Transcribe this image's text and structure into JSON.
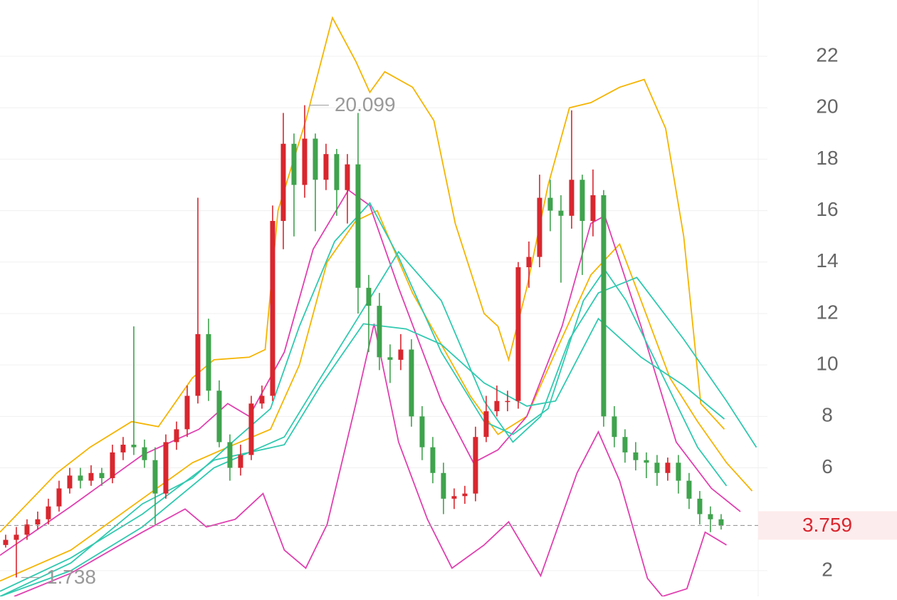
{
  "chart_data": {
    "type": "candlestick",
    "ylim": [
      1,
      24.19
    ],
    "yticks": [
      2,
      6,
      8,
      10,
      12,
      14,
      16,
      18,
      20,
      22
    ],
    "xlim": [
      -0.53,
      70.47
    ],
    "grid": true,
    "color_up": "#d9262e",
    "color_down": "#3fa34d",
    "open": [
      3.0,
      3.2,
      3.4,
      3.8,
      4.0,
      4.5,
      5.2,
      5.7,
      5.5,
      5.8,
      5.6,
      6.6,
      6.9,
      6.8,
      6.3,
      5.0,
      7.0,
      7.5,
      8.8,
      11.2,
      9.0,
      7.0,
      6.0,
      6.5,
      8.5,
      8.8,
      15.6,
      18.6,
      17.0,
      18.8,
      17.2,
      18.2,
      16.8,
      17.8,
      13.0,
      12.3,
      10.3,
      10.2,
      10.6,
      8.0,
      6.8,
      5.8,
      4.8,
      4.9,
      5.0,
      7.2,
      8.2,
      8.6,
      8.6,
      13.8,
      14.2,
      16.5,
      16.0,
      15.8,
      17.2,
      15.6,
      16.6,
      8.0,
      7.2,
      6.6,
      6.3,
      6.2,
      5.8,
      6.2,
      5.5,
      4.8,
      4.2,
      4.0
    ],
    "high": [
      3.4,
      3.7,
      4.0,
      4.3,
      4.8,
      5.5,
      6.0,
      6.0,
      6.1,
      6.0,
      6.9,
      7.2,
      11.5,
      7.1,
      6.8,
      7.3,
      7.8,
      9.2,
      16.5,
      11.8,
      9.4,
      7.3,
      6.9,
      8.8,
      9.2,
      16.2,
      19.8,
      19.0,
      20.099,
      19.0,
      18.6,
      18.4,
      18.2,
      19.8,
      13.5,
      12.8,
      10.8,
      11.2,
      11.0,
      8.4,
      7.2,
      6.2,
      5.2,
      5.3,
      7.6,
      8.8,
      9.2,
      9.0,
      14.0,
      14.8,
      17.4,
      17.2,
      16.6,
      19.9,
      17.4,
      17.6,
      16.8,
      8.4,
      7.5,
      7.0,
      6.6,
      6.5,
      6.4,
      6.5,
      5.8,
      5.1,
      4.5,
      4.2
    ],
    "low": [
      2.9,
      1.738,
      3.2,
      3.6,
      3.8,
      4.3,
      5.0,
      5.2,
      5.3,
      5.3,
      5.4,
      6.3,
      6.5,
      6.0,
      3.8,
      4.8,
      6.7,
      7.2,
      8.5,
      8.6,
      6.8,
      5.5,
      5.7,
      6.3,
      8.3,
      8.6,
      14.5,
      15.0,
      16.5,
      15.2,
      16.8,
      15.8,
      15.5,
      12.0,
      10.5,
      9.8,
      9.3,
      9.8,
      7.6,
      6.3,
      5.4,
      4.2,
      4.4,
      4.6,
      4.7,
      7.0,
      8.0,
      8.2,
      8.3,
      13.0,
      13.8,
      15.2,
      13.2,
      15.3,
      13.5,
      15.0,
      7.6,
      6.8,
      6.2,
      5.9,
      5.6,
      5.3,
      5.5,
      5.0,
      4.4,
      3.8,
      3.5,
      3.6
    ],
    "close": [
      3.2,
      3.4,
      3.8,
      4.0,
      4.5,
      5.2,
      5.7,
      5.5,
      5.8,
      5.6,
      6.6,
      6.9,
      6.8,
      6.3,
      5.0,
      7.0,
      7.5,
      8.8,
      11.2,
      9.0,
      7.0,
      6.0,
      6.5,
      8.5,
      8.8,
      15.6,
      18.6,
      17.0,
      18.8,
      17.2,
      18.2,
      16.8,
      17.8,
      13.0,
      12.3,
      10.3,
      10.2,
      10.6,
      8.0,
      6.8,
      5.8,
      4.8,
      4.9,
      5.0,
      7.2,
      8.2,
      8.6,
      8.6,
      13.8,
      14.2,
      16.5,
      16.0,
      15.8,
      17.2,
      15.6,
      16.6,
      8.0,
      7.2,
      6.6,
      6.3,
      6.2,
      5.8,
      6.2,
      5.5,
      4.8,
      4.2,
      4.0,
      3.759
    ],
    "lines": [
      {
        "color": "#f5b400",
        "x": [
          -0.53,
          4.8,
          7.9,
          11.8,
          14.3,
          17.5,
          19.5,
          22.8,
          24.3,
          25.5,
          28.1,
          30.6,
          32.8,
          34.1,
          35.5,
          38.1,
          40.1,
          42.1,
          44.8,
          46.1,
          47.1,
          48.8,
          50.8,
          52.8,
          54.8,
          57.5,
          59.8,
          61.8,
          63.5,
          65.1,
          67.3
        ],
        "values": [
          3.5,
          5.8,
          6.8,
          7.8,
          7.6,
          9.5,
          10.2,
          10.3,
          10.6,
          16,
          19.5,
          23.5,
          21.8,
          20.6,
          21.4,
          20.8,
          19.5,
          15.5,
          12,
          11.5,
          10.2,
          13,
          17,
          20,
          20.2,
          20.8,
          21.1,
          19.2,
          15,
          8.5,
          7.5
        ]
      },
      {
        "color": "#f5b400",
        "x": [
          -0.53,
          6.1,
          12.8,
          17.5,
          20.8,
          24.8,
          27.5,
          30.1,
          32.8,
          34.8,
          38.1,
          40.8,
          43.5,
          46.1,
          48.8,
          51.5,
          54.8,
          57.5,
          59.5,
          62.2,
          64.8,
          67.5,
          69.9
        ],
        "values": [
          1.6,
          2.8,
          4.8,
          6.2,
          6.8,
          7.5,
          10,
          14,
          15.6,
          16,
          12.8,
          10.8,
          8.8,
          7.3,
          8,
          10.5,
          13.5,
          14.7,
          12.5,
          9.5,
          7.8,
          6.2,
          5.1
        ]
      },
      {
        "color": "#e040b0",
        "x": [
          -0.53,
          6.1,
          12.8,
          18.1,
          20.8,
          22.8,
          26.1,
          28.8,
          32.1,
          34.1,
          36.8,
          40.8,
          43.8,
          46.1,
          48.8,
          52.1,
          54.8,
          56.1,
          59.5,
          62.8,
          66.1,
          68.8
        ],
        "values": [
          2.6,
          4.5,
          6.5,
          7.5,
          8.5,
          8.0,
          10.5,
          14.5,
          16.8,
          16.2,
          13,
          8.6,
          6.2,
          6.7,
          8,
          11.5,
          15.5,
          15.8,
          11.5,
          7.0,
          5.2,
          4.3
        ]
      },
      {
        "color": "#e040b0",
        "x": [
          0.8,
          6.1,
          12.8,
          16.8,
          18.8,
          21.5,
          24.1,
          26.1,
          28.1,
          30.1,
          32.8,
          34.5,
          36.8,
          39.5,
          41.8,
          44.8,
          47.1,
          50.1,
          53.5,
          55.5,
          57.5,
          60.1,
          61.5,
          63.8,
          65.5,
          67.5
        ],
        "values": [
          1.0,
          1.9,
          3.5,
          4.4,
          3.7,
          4.0,
          5.0,
          2.8,
          2.1,
          3.8,
          8.5,
          11.6,
          7.0,
          4.0,
          2.1,
          3.0,
          3.9,
          1.8,
          5.8,
          7.4,
          5.5,
          1.7,
          1.0,
          1.3,
          3.5,
          3.0
        ]
      },
      {
        "color": "#30c9b0",
        "x": [
          -0.53,
          6.1,
          12.8,
          17.5,
          21.5,
          24.8,
          27.5,
          30.8,
          34.1,
          36.8,
          40.8,
          44.8,
          47.5,
          50.8,
          54.1,
          56.1,
          58.1,
          61.5,
          64.8,
          67.5
        ],
        "values": [
          1.0,
          2.3,
          4.6,
          5.6,
          7.1,
          8.3,
          11.5,
          14.8,
          16.3,
          14.2,
          10.5,
          7.8,
          7.3,
          8.3,
          12.5,
          13.7,
          12.5,
          9.6,
          6.8,
          5.3
        ]
      },
      {
        "color": "#30c9b0",
        "x": [
          -0.53,
          6.1,
          12.8,
          19.5,
          26.1,
          29.5,
          32.8,
          36.8,
          40.8,
          44.8,
          47.5,
          50.1,
          52.8,
          55.5,
          59.1,
          63.5,
          67.5,
          70.3
        ],
        "values": [
          1.0,
          2.0,
          3.7,
          6.0,
          7.2,
          9.5,
          11.7,
          14.4,
          12.5,
          8.6,
          7.0,
          8.0,
          11.0,
          12.8,
          13.4,
          11.0,
          8.6,
          6.8
        ]
      },
      {
        "color": "#30c9b0",
        "x": [
          -0.53,
          6.1,
          12.8,
          19.5,
          26.1,
          29.5,
          33.5,
          37.5,
          40.8,
          44.8,
          48.8,
          51.5,
          55.5,
          59.5,
          63.5,
          67.3
        ],
        "values": [
          1.2,
          2.5,
          4.2,
          6.3,
          6.9,
          9.2,
          11.6,
          11.4,
          10.8,
          9.3,
          8.4,
          8.6,
          11.8,
          10.3,
          9.2,
          7.9
        ]
      }
    ]
  }
}
